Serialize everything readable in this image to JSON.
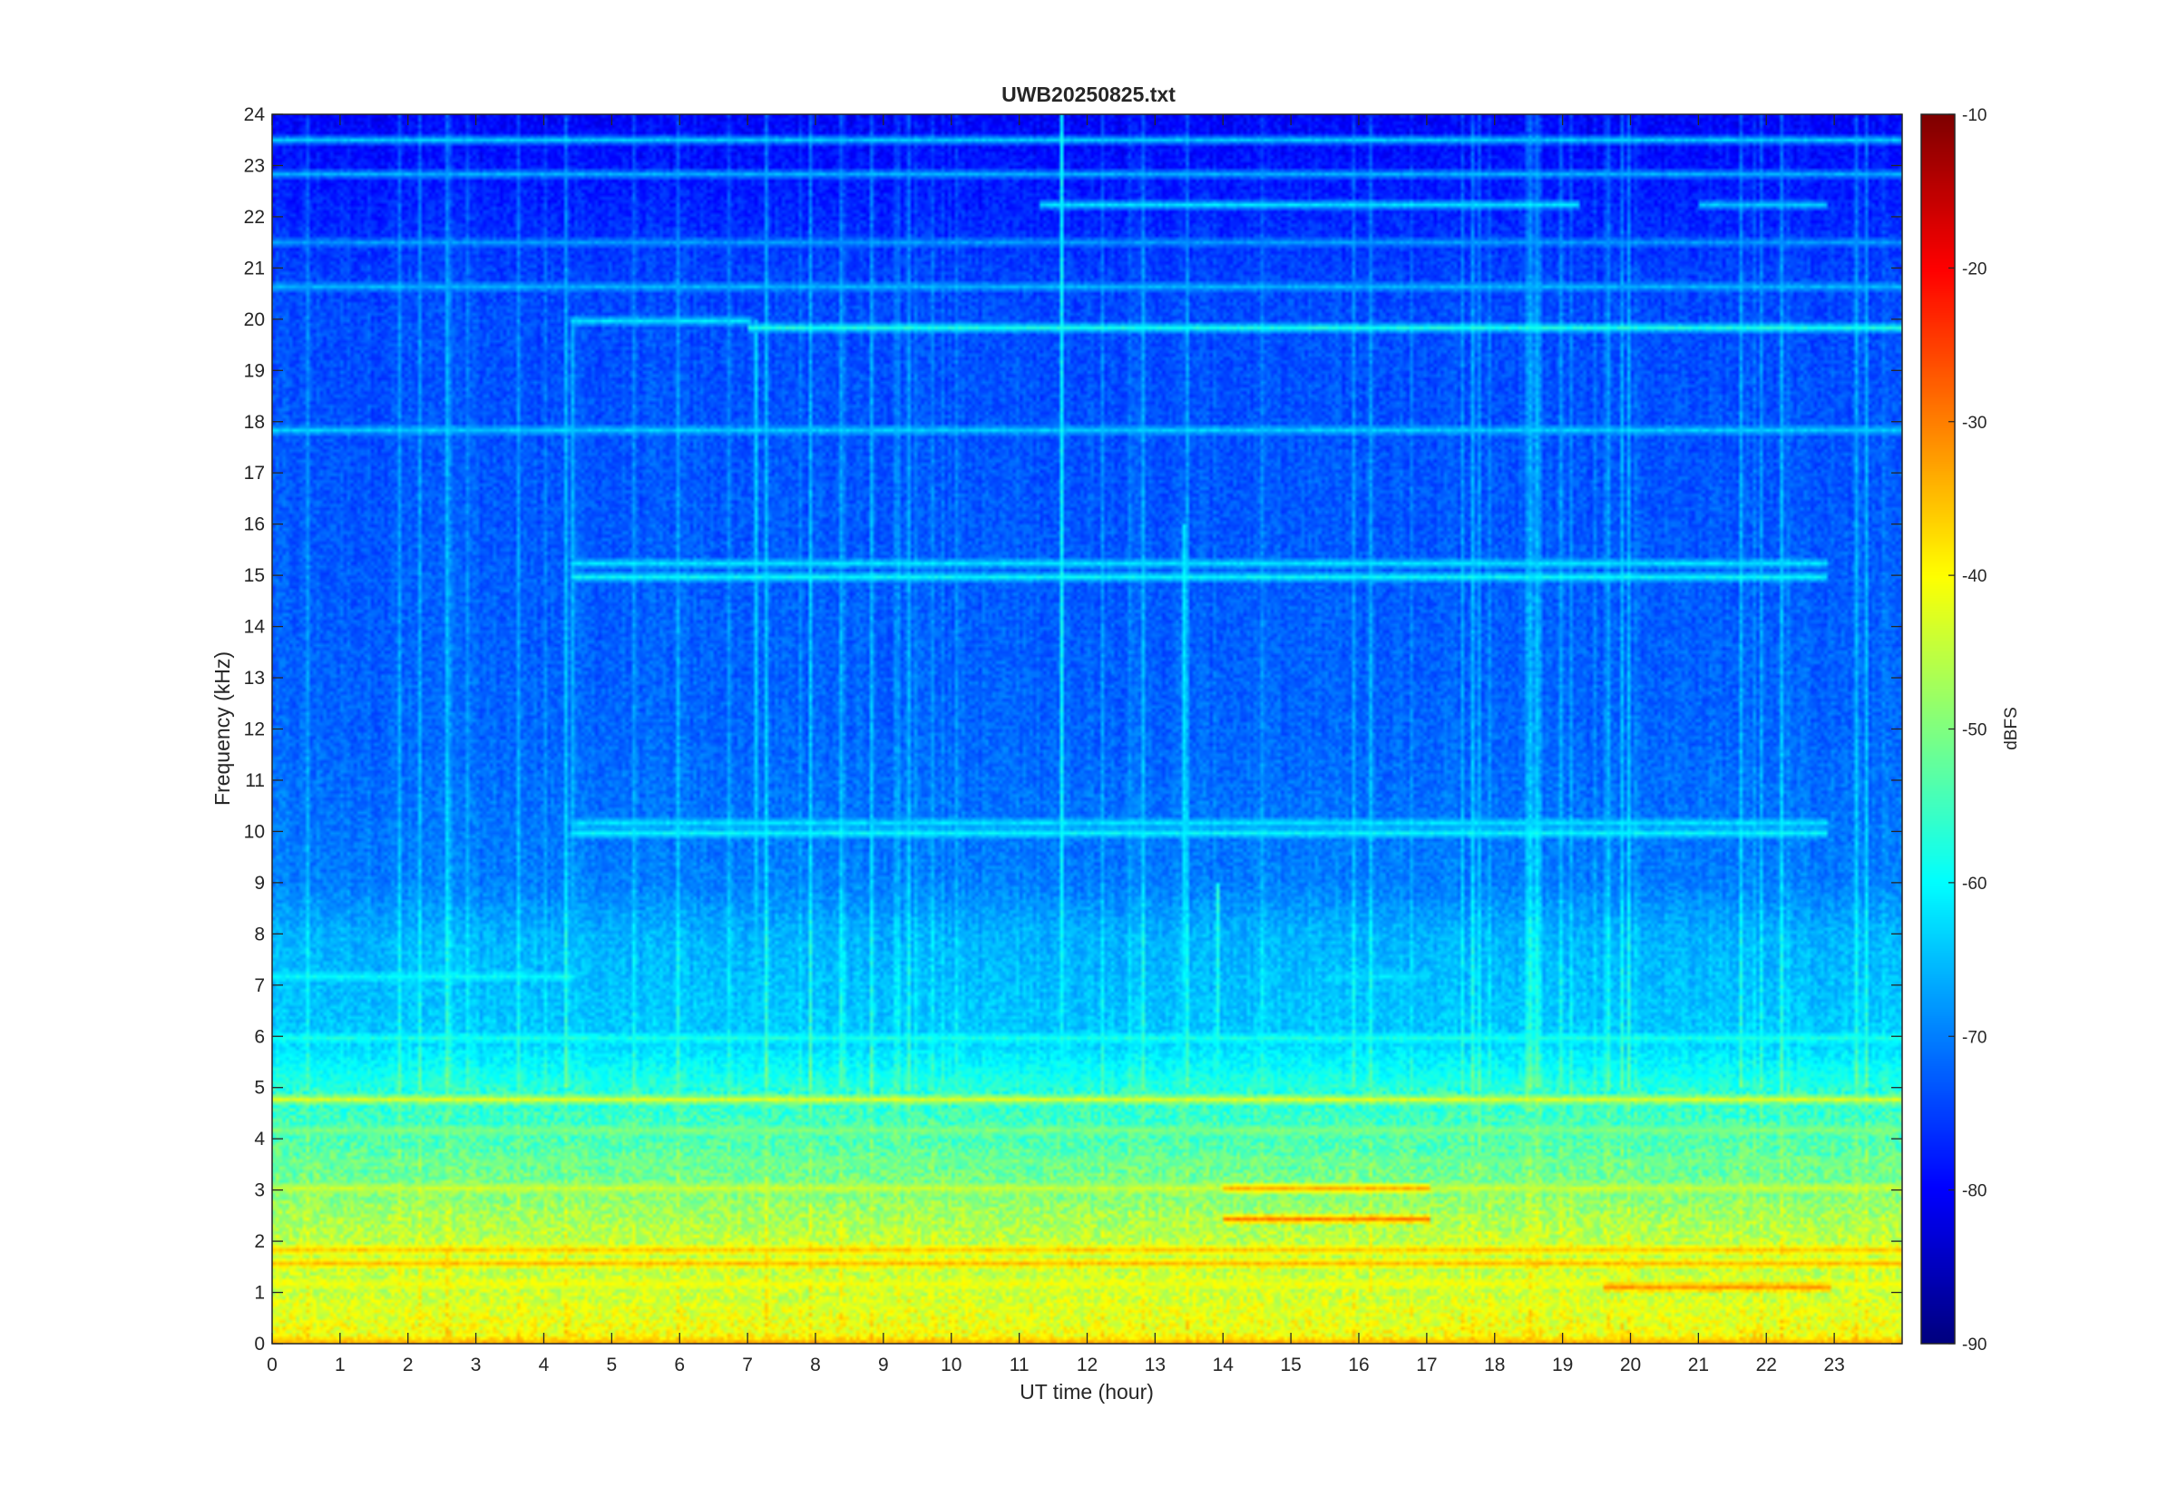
{
  "chart_data": {
    "type": "heatmap",
    "title": "UWB20250825.txt",
    "xlabel": "UT time (hour)",
    "ylabel": "Frequency (kHz)",
    "xlim": [
      0,
      24
    ],
    "ylim": [
      0,
      24
    ],
    "x_ticks": [
      "0",
      "1",
      "2",
      "3",
      "4",
      "5",
      "6",
      "7",
      "8",
      "9",
      "10",
      "11",
      "12",
      "13",
      "14",
      "15",
      "16",
      "17",
      "18",
      "19",
      "20",
      "21",
      "22",
      "23"
    ],
    "y_ticks": [
      "0",
      "1",
      "2",
      "3",
      "4",
      "5",
      "6",
      "7",
      "8",
      "9",
      "10",
      "11",
      "12",
      "13",
      "14",
      "15",
      "16",
      "17",
      "18",
      "19",
      "20",
      "21",
      "22",
      "23",
      "24"
    ],
    "colorbar": {
      "label": "dBFS",
      "colormap": "jet",
      "clim": [
        -90,
        -10
      ],
      "ticks": [
        "-10",
        "-20",
        "-30",
        "-40",
        "-50",
        "-60",
        "-70",
        "-80",
        "-90"
      ]
    },
    "background_profile": {
      "freq_khz": [
        0,
        0.5,
        1,
        2,
        2.5,
        3,
        4,
        5,
        6,
        8,
        9,
        12,
        16,
        20,
        21,
        22,
        24
      ],
      "level_dbfs": [
        -40,
        -42,
        -44,
        -45,
        -47,
        -50,
        -54,
        -57,
        -64,
        -66,
        -70,
        -72,
        -73,
        -74,
        -75,
        -77,
        -80
      ]
    },
    "tones": [
      {
        "freq_khz": 0.05,
        "t_start": 0,
        "t_end": 24,
        "level_dbfs": -34
      },
      {
        "freq_khz": 0.7,
        "t_start": 0,
        "t_end": 24,
        "level_dbfs": -44
      },
      {
        "freq_khz": 1.2,
        "t_start": 0,
        "t_end": 24,
        "level_dbfs": -41
      },
      {
        "freq_khz": 1.55,
        "t_start": 0,
        "t_end": 24,
        "level_dbfs": -35
      },
      {
        "freq_khz": 1.85,
        "t_start": 0,
        "t_end": 24,
        "level_dbfs": -36
      },
      {
        "freq_khz": 1.1,
        "t_start": 19.6,
        "t_end": 22.9,
        "level_dbfs": -32
      },
      {
        "freq_khz": 2.45,
        "t_start": 14.0,
        "t_end": 17.0,
        "level_dbfs": -30
      },
      {
        "freq_khz": 3.05,
        "t_start": 0,
        "t_end": 24,
        "level_dbfs": -44
      },
      {
        "freq_khz": 3.05,
        "t_start": 14.0,
        "t_end": 17.0,
        "level_dbfs": -34
      },
      {
        "freq_khz": 3.6,
        "t_start": 0,
        "t_end": 24,
        "level_dbfs": -52
      },
      {
        "freq_khz": 4.2,
        "t_start": 0,
        "t_end": 24,
        "level_dbfs": -50
      },
      {
        "freq_khz": 4.8,
        "t_start": 0,
        "t_end": 24,
        "level_dbfs": -43
      },
      {
        "freq_khz": 6.0,
        "t_start": 0,
        "t_end": 24,
        "level_dbfs": -58
      },
      {
        "freq_khz": 7.2,
        "t_start": 0,
        "t_end": 4.4,
        "level_dbfs": -60
      },
      {
        "freq_khz": 7.2,
        "t_start": 15.5,
        "t_end": 17.0,
        "level_dbfs": -62
      },
      {
        "freq_khz": 10.0,
        "t_start": 4.4,
        "t_end": 22.8,
        "level_dbfs": -60
      },
      {
        "freq_khz": 10.2,
        "t_start": 4.4,
        "t_end": 22.8,
        "level_dbfs": -62
      },
      {
        "freq_khz": 15.0,
        "t_start": 4.4,
        "t_end": 22.8,
        "level_dbfs": -60
      },
      {
        "freq_khz": 15.25,
        "t_start": 4.4,
        "t_end": 22.8,
        "level_dbfs": -62
      },
      {
        "freq_khz": 17.8,
        "t_start": 0,
        "t_end": 24,
        "level_dbfs": -64
      },
      {
        "freq_khz": 19.8,
        "t_start": 7.0,
        "t_end": 24,
        "level_dbfs": -58
      },
      {
        "freq_khz": 20.0,
        "t_start": 4.4,
        "t_end": 7.0,
        "level_dbfs": -62
      },
      {
        "freq_khz": 20.6,
        "t_start": 0,
        "t_end": 24,
        "level_dbfs": -66
      },
      {
        "freq_khz": 21.5,
        "t_start": 0,
        "t_end": 24,
        "level_dbfs": -68
      },
      {
        "freq_khz": 22.25,
        "t_start": 11.3,
        "t_end": 19.2,
        "level_dbfs": -62
      },
      {
        "freq_khz": 22.25,
        "t_start": 21.0,
        "t_end": 22.8,
        "level_dbfs": -64
      },
      {
        "freq_khz": 22.8,
        "t_start": 0,
        "t_end": 24,
        "level_dbfs": -66
      },
      {
        "freq_khz": 23.5,
        "t_start": 0,
        "t_end": 24,
        "level_dbfs": -64
      }
    ],
    "impulses": [
      {
        "t_hour": 4.4,
        "f_max_khz": 20,
        "level_dbfs": -66
      },
      {
        "t_hour": 7.1,
        "f_max_khz": 20,
        "level_dbfs": -64
      },
      {
        "t_hour": 11.6,
        "f_max_khz": 24,
        "level_dbfs": -60
      },
      {
        "t_hour": 13.4,
        "f_max_khz": 16,
        "level_dbfs": -62
      },
      {
        "t_hour": 13.9,
        "f_max_khz": 9,
        "level_dbfs": -58
      }
    ]
  }
}
